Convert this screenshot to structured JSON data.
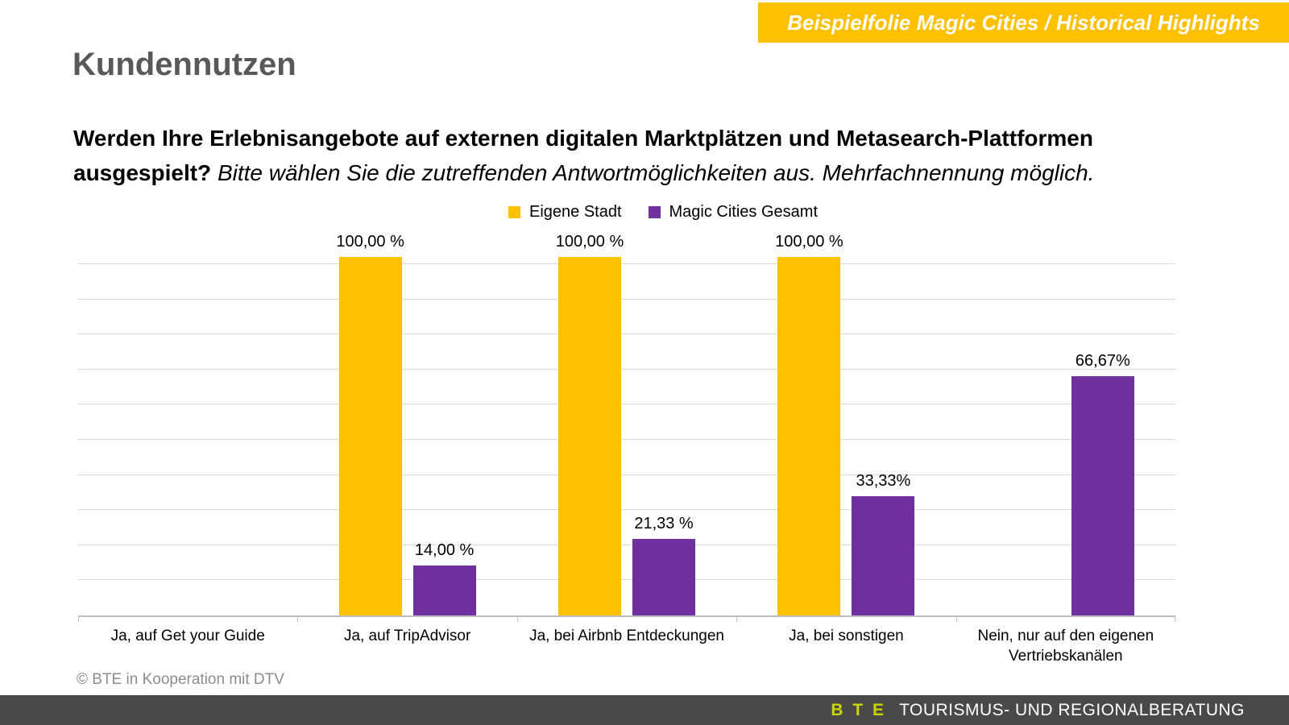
{
  "banner": {
    "text": "Beispielfolie Magic Cities / Historical Highlights",
    "bg_color": "#FFC000"
  },
  "title": "Kundennutzen",
  "question": {
    "line1_bold": "Werden Ihre Erlebnisangebote auf externen digitalen Marktplätzen und Metasearch-Plattformen",
    "line2_bold": "ausgespielt?",
    "line2_italic": "Bitte wählen Sie die zutreffenden Antwortmöglichkeiten aus. Mehrfachnennung möglich."
  },
  "chart_data": {
    "type": "bar",
    "title": "",
    "categories": [
      {
        "lines": [
          "Ja, auf Get your Guide"
        ]
      },
      {
        "lines": [
          "Ja, auf TripAdvisor"
        ]
      },
      {
        "lines": [
          "Ja, bei Airbnb Entdeckungen"
        ]
      },
      {
        "lines": [
          "Ja, bei sonstigen"
        ]
      },
      {
        "lines": [
          "Nein, nur auf den eigenen",
          "Vertriebskanälen"
        ]
      }
    ],
    "series": [
      {
        "name": "Eigene Stadt",
        "color": "#FFC000",
        "values": [
          null,
          100.0,
          100.0,
          100.0,
          null
        ],
        "labels": [
          "",
          "100,00 %",
          "100,00 %",
          "100,00 %",
          ""
        ]
      },
      {
        "name": "Magic Cities Gesamt",
        "color": "#7030A0",
        "values": [
          null,
          14.0,
          21.33,
          33.33,
          66.67
        ],
        "labels": [
          "",
          "14,00 %",
          "21,33 %",
          "33,33%",
          "66,67%"
        ]
      }
    ],
    "ylim": [
      0,
      100
    ],
    "gridline_count": 10,
    "grid": true,
    "legend_position": "top-center",
    "xlabel": "",
    "ylabel": ""
  },
  "footer": {
    "copyright": "© BTE in Kooperation mit DTV",
    "brand": "B T E",
    "brand_rest": "TOURISMUS- UND REGIONALBERATUNG",
    "brand_color": "#c9d400",
    "bar_color": "#4a4947"
  }
}
